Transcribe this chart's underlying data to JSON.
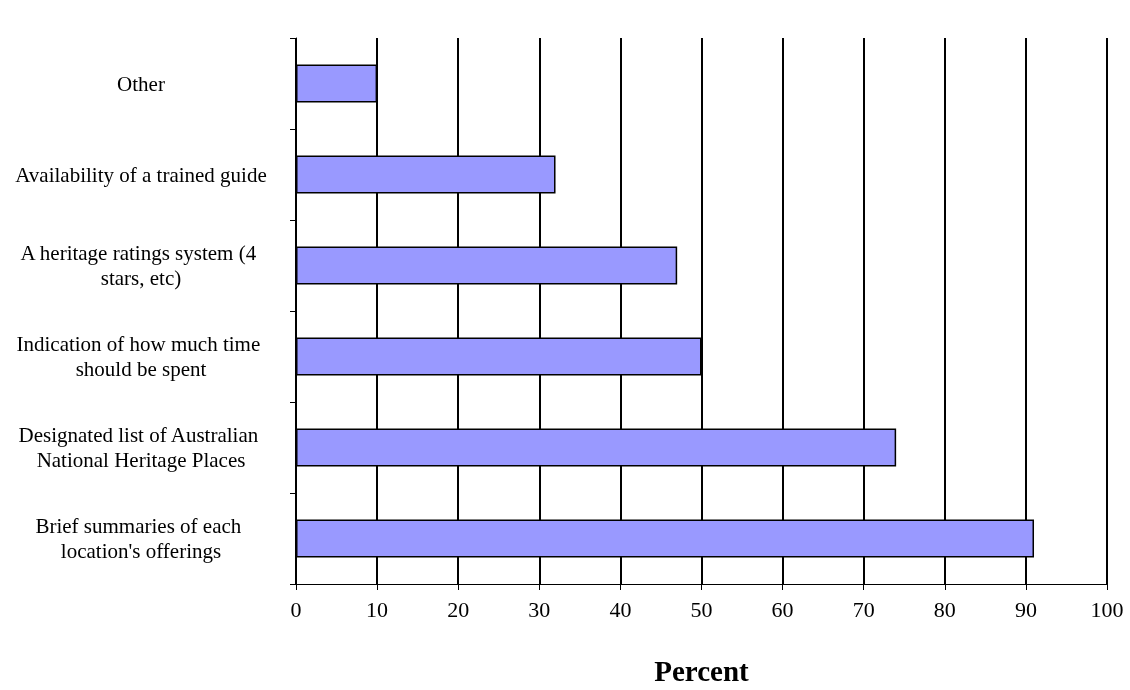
{
  "chart_data": {
    "type": "bar",
    "orientation": "horizontal",
    "categories": [
      "Other",
      "Availability of a trained guide",
      "A heritage ratings system (4 stars, etc)",
      "Indication of how much time should be spent",
      "Designated list of Australian National Heritage Places",
      "Brief summaries of each location's offerings"
    ],
    "values": [
      10,
      32,
      47,
      50,
      74,
      91
    ],
    "color": "#9999ff",
    "xlabel": "Percent",
    "xlim": [
      0,
      100
    ],
    "xticks": [
      0,
      10,
      20,
      30,
      40,
      50,
      60,
      70,
      80,
      90,
      100
    ],
    "grid": "x"
  }
}
